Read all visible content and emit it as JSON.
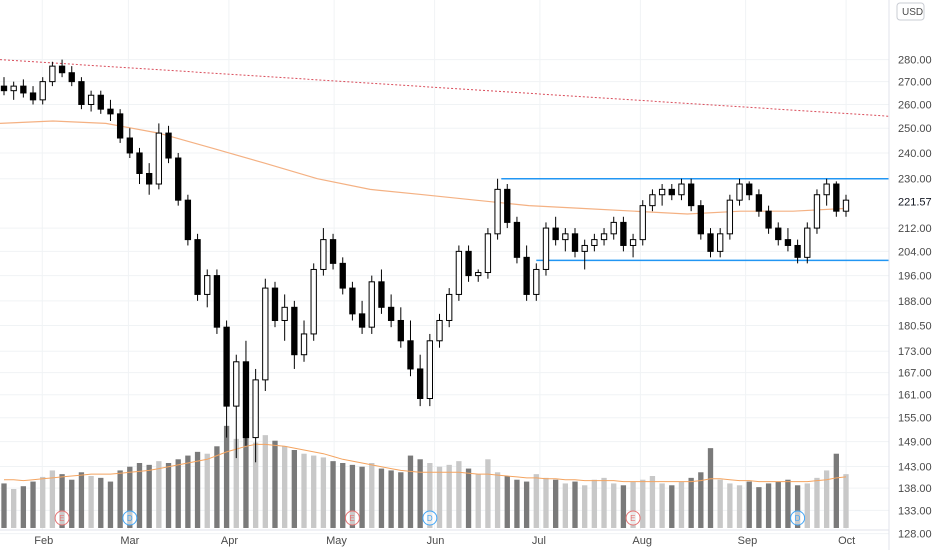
{
  "currency_button": "USD",
  "last_price_label": "221.57",
  "colors": {
    "up": "#ffffff",
    "down": "#000000",
    "wick": "#000000",
    "ma200": "#f4b183",
    "trendline": "#d94c5a",
    "channel": "#2196f3",
    "volume_dark": "#7a7a7a",
    "volume_light": "#c8c8c8",
    "volume_ma": "#f4a460",
    "grid": "#f0f3f5",
    "axis_text": "#4a4a4a"
  },
  "chart_data": {
    "type": "candlestick",
    "price_axis_ticks": [
      "280.00",
      "270.00",
      "260.00",
      "250.00",
      "240.00",
      "230.00",
      "221.57",
      "212.00",
      "204.00",
      "196.00",
      "188.00",
      "180.50",
      "173.00",
      "167.00",
      "161.00",
      "155.00",
      "149.00",
      "143.00",
      "138.00",
      "133.00",
      "128.00"
    ],
    "month_labels": [
      "Feb",
      "Mar",
      "Apr",
      "May",
      "Jun",
      "Jul",
      "Aug",
      "Sep",
      "Oct"
    ],
    "scale": "log",
    "ylim": [
      125,
      295
    ],
    "last_price": 221.57,
    "trendline": {
      "start": 280,
      "end": 255
    },
    "channel": {
      "resistance": 230,
      "support": 201
    },
    "ma200": [
      252,
      253,
      252,
      248,
      242,
      236,
      230,
      226,
      224,
      222,
      220,
      219,
      218,
      217,
      218,
      218,
      219
    ],
    "candles": [
      {
        "o": 268,
        "h": 272,
        "l": 264,
        "c": 266
      },
      {
        "o": 266,
        "h": 270,
        "l": 262,
        "c": 268
      },
      {
        "o": 268,
        "h": 271,
        "l": 263,
        "c": 265
      },
      {
        "o": 265,
        "h": 268,
        "l": 260,
        "c": 262
      },
      {
        "o": 262,
        "h": 272,
        "l": 260,
        "c": 270
      },
      {
        "o": 270,
        "h": 279,
        "l": 268,
        "c": 277
      },
      {
        "o": 277,
        "h": 280,
        "l": 272,
        "c": 274
      },
      {
        "o": 274,
        "h": 277,
        "l": 268,
        "c": 270
      },
      {
        "o": 270,
        "h": 272,
        "l": 258,
        "c": 260
      },
      {
        "o": 260,
        "h": 266,
        "l": 257,
        "c": 264
      },
      {
        "o": 264,
        "h": 266,
        "l": 256,
        "c": 258
      },
      {
        "o": 258,
        "h": 262,
        "l": 253,
        "c": 256
      },
      {
        "o": 256,
        "h": 258,
        "l": 244,
        "c": 246
      },
      {
        "o": 246,
        "h": 250,
        "l": 238,
        "c": 240
      },
      {
        "o": 240,
        "h": 242,
        "l": 228,
        "c": 232
      },
      {
        "o": 232,
        "h": 236,
        "l": 224,
        "c": 228
      },
      {
        "o": 228,
        "h": 252,
        "l": 226,
        "c": 248
      },
      {
        "o": 248,
        "h": 251,
        "l": 236,
        "c": 238
      },
      {
        "o": 238,
        "h": 240,
        "l": 220,
        "c": 222
      },
      {
        "o": 222,
        "h": 224,
        "l": 206,
        "c": 208
      },
      {
        "o": 208,
        "h": 210,
        "l": 188,
        "c": 190
      },
      {
        "o": 190,
        "h": 198,
        "l": 186,
        "c": 196
      },
      {
        "o": 196,
        "h": 198,
        "l": 178,
        "c": 180
      },
      {
        "o": 180,
        "h": 182,
        "l": 150,
        "c": 158
      },
      {
        "o": 158,
        "h": 172,
        "l": 145,
        "c": 170
      },
      {
        "o": 170,
        "h": 176,
        "l": 148,
        "c": 150
      },
      {
        "o": 150,
        "h": 168,
        "l": 144,
        "c": 165
      },
      {
        "o": 165,
        "h": 195,
        "l": 162,
        "c": 192
      },
      {
        "o": 192,
        "h": 194,
        "l": 180,
        "c": 182
      },
      {
        "o": 182,
        "h": 190,
        "l": 176,
        "c": 186
      },
      {
        "o": 186,
        "h": 188,
        "l": 168,
        "c": 172
      },
      {
        "o": 172,
        "h": 182,
        "l": 170,
        "c": 178
      },
      {
        "o": 178,
        "h": 200,
        "l": 176,
        "c": 198
      },
      {
        "o": 198,
        "h": 212,
        "l": 196,
        "c": 208
      },
      {
        "o": 208,
        "h": 210,
        "l": 198,
        "c": 200
      },
      {
        "o": 200,
        "h": 202,
        "l": 190,
        "c": 192
      },
      {
        "o": 192,
        "h": 194,
        "l": 182,
        "c": 184
      },
      {
        "o": 184,
        "h": 188,
        "l": 178,
        "c": 180
      },
      {
        "o": 180,
        "h": 196,
        "l": 178,
        "c": 194
      },
      {
        "o": 194,
        "h": 198,
        "l": 184,
        "c": 186
      },
      {
        "o": 186,
        "h": 190,
        "l": 180,
        "c": 182
      },
      {
        "o": 182,
        "h": 186,
        "l": 174,
        "c": 176
      },
      {
        "o": 176,
        "h": 182,
        "l": 166,
        "c": 168
      },
      {
        "o": 168,
        "h": 172,
        "l": 158,
        "c": 160
      },
      {
        "o": 160,
        "h": 178,
        "l": 158,
        "c": 176
      },
      {
        "o": 176,
        "h": 184,
        "l": 174,
        "c": 182
      },
      {
        "o": 182,
        "h": 192,
        "l": 180,
        "c": 190
      },
      {
        "o": 190,
        "h": 206,
        "l": 188,
        "c": 204
      },
      {
        "o": 204,
        "h": 206,
        "l": 194,
        "c": 196
      },
      {
        "o": 196,
        "h": 198,
        "l": 194,
        "c": 197
      },
      {
        "o": 197,
        "h": 212,
        "l": 195,
        "c": 210
      },
      {
        "o": 210,
        "h": 230,
        "l": 208,
        "c": 226
      },
      {
        "o": 226,
        "h": 228,
        "l": 212,
        "c": 214
      },
      {
        "o": 214,
        "h": 216,
        "l": 200,
        "c": 202
      },
      {
        "o": 202,
        "h": 206,
        "l": 188,
        "c": 190
      },
      {
        "o": 190,
        "h": 200,
        "l": 188,
        "c": 198
      },
      {
        "o": 198,
        "h": 214,
        "l": 196,
        "c": 212
      },
      {
        "o": 212,
        "h": 216,
        "l": 206,
        "c": 208
      },
      {
        "o": 208,
        "h": 212,
        "l": 204,
        "c": 210
      },
      {
        "o": 210,
        "h": 212,
        "l": 202,
        "c": 204
      },
      {
        "o": 204,
        "h": 208,
        "l": 198,
        "c": 206
      },
      {
        "o": 206,
        "h": 210,
        "l": 204,
        "c": 208
      },
      {
        "o": 208,
        "h": 212,
        "l": 206,
        "c": 210
      },
      {
        "o": 210,
        "h": 216,
        "l": 208,
        "c": 214
      },
      {
        "o": 214,
        "h": 216,
        "l": 204,
        "c": 206
      },
      {
        "o": 206,
        "h": 210,
        "l": 202,
        "c": 208
      },
      {
        "o": 208,
        "h": 222,
        "l": 206,
        "c": 220
      },
      {
        "o": 220,
        "h": 226,
        "l": 218,
        "c": 224
      },
      {
        "o": 224,
        "h": 228,
        "l": 220,
        "c": 226
      },
      {
        "o": 226,
        "h": 228,
        "l": 222,
        "c": 224
      },
      {
        "o": 224,
        "h": 230,
        "l": 222,
        "c": 228
      },
      {
        "o": 228,
        "h": 230,
        "l": 218,
        "c": 220
      },
      {
        "o": 220,
        "h": 222,
        "l": 208,
        "c": 210
      },
      {
        "o": 210,
        "h": 212,
        "l": 202,
        "c": 204
      },
      {
        "o": 204,
        "h": 212,
        "l": 202,
        "c": 210
      },
      {
        "o": 210,
        "h": 224,
        "l": 208,
        "c": 222
      },
      {
        "o": 222,
        "h": 230,
        "l": 220,
        "c": 228
      },
      {
        "o": 228,
        "h": 229,
        "l": 222,
        "c": 224
      },
      {
        "o": 224,
        "h": 226,
        "l": 216,
        "c": 218
      },
      {
        "o": 218,
        "h": 220,
        "l": 210,
        "c": 212
      },
      {
        "o": 212,
        "h": 214,
        "l": 206,
        "c": 208
      },
      {
        "o": 208,
        "h": 212,
        "l": 204,
        "c": 206
      },
      {
        "o": 206,
        "h": 208,
        "l": 200,
        "c": 202
      },
      {
        "o": 202,
        "h": 214,
        "l": 200,
        "c": 212
      },
      {
        "o": 212,
        "h": 226,
        "l": 210,
        "c": 224
      },
      {
        "o": 224,
        "h": 230,
        "l": 220,
        "c": 228
      },
      {
        "o": 228,
        "h": 229,
        "l": 216,
        "c": 218
      },
      {
        "o": 218,
        "h": 224,
        "l": 216,
        "c": 222
      }
    ],
    "volume": [
      48,
      42,
      45,
      50,
      55,
      62,
      58,
      52,
      60,
      56,
      54,
      50,
      62,
      66,
      70,
      68,
      72,
      70,
      74,
      78,
      82,
      80,
      88,
      110,
      96,
      120,
      92,
      100,
      94,
      88,
      84,
      80,
      78,
      76,
      72,
      70,
      68,
      66,
      70,
      64,
      62,
      60,
      78,
      74,
      70,
      66,
      68,
      72,
      64,
      58,
      74,
      60,
      56,
      52,
      50,
      58,
      54,
      52,
      48,
      50,
      46,
      52,
      54,
      48,
      46,
      50,
      52,
      56,
      48,
      46,
      50,
      54,
      60,
      86,
      52,
      48,
      46,
      50,
      44,
      48,
      50,
      52,
      46,
      48,
      54,
      62,
      80,
      58
    ],
    "volume_ma": [
      52,
      52,
      51,
      52,
      53,
      54,
      55,
      56,
      57,
      58,
      58,
      58,
      59,
      60,
      61,
      62,
      64,
      66,
      68,
      70,
      72,
      74,
      78,
      82,
      85,
      88,
      90,
      90,
      89,
      88,
      86,
      84,
      82,
      80,
      77,
      74,
      72,
      70,
      68,
      66,
      64,
      62,
      61,
      60,
      60,
      60,
      60,
      60,
      59,
      58,
      58,
      57,
      56,
      55,
      54,
      54,
      53,
      53,
      52,
      52,
      51,
      51,
      51,
      51,
      50,
      50,
      50,
      50,
      50,
      50,
      50,
      50,
      51,
      53,
      53,
      52,
      51,
      51,
      50,
      50,
      50,
      50,
      50,
      50,
      51,
      52,
      54,
      55
    ],
    "volume_ylim": [
      0,
      140
    ],
    "event_markers": [
      {
        "label": "E",
        "kind": "earnings"
      },
      {
        "label": "D",
        "kind": "dividend"
      },
      {
        "label": "E",
        "kind": "earnings"
      },
      {
        "label": "D",
        "kind": "dividend"
      },
      {
        "label": "E",
        "kind": "earnings"
      },
      {
        "label": "D",
        "kind": "dividend"
      }
    ]
  }
}
